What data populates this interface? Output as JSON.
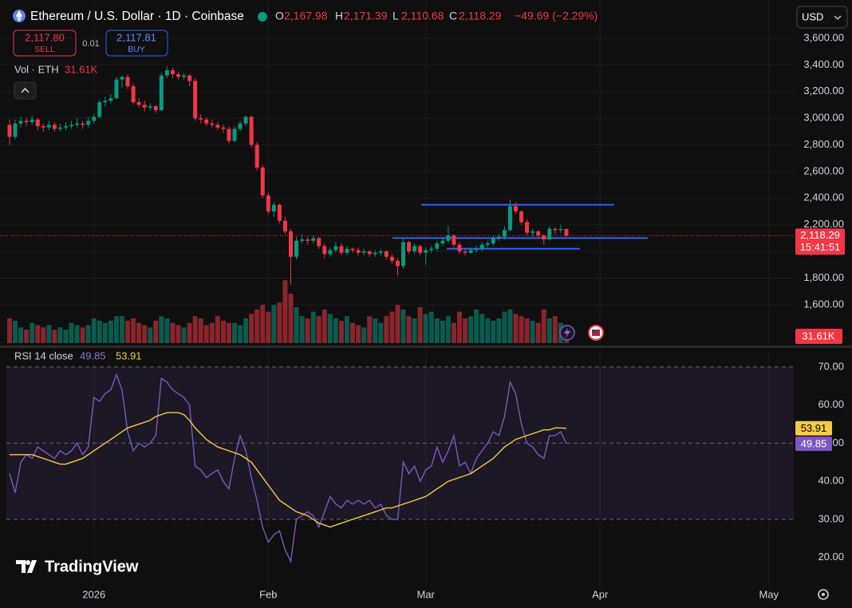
{
  "header": {
    "title": "Ethereum / U.S. Dollar · 1D · Coinbase",
    "ohlc": [
      {
        "key": "O",
        "value": "2,167.98"
      },
      {
        "key": "H",
        "value": "2,171.39"
      },
      {
        "key": "L",
        "value": "2,110.68"
      },
      {
        "key": "C",
        "value": "2,118.29"
      }
    ],
    "change": "−49.69 (−2.29%)"
  },
  "trade": {
    "sell_price": "2,117.80",
    "sell": "SELL",
    "spread": "0.01",
    "buy_price": "2,117.81",
    "buy": "BUY"
  },
  "currency": "USD",
  "logo": "TradingView",
  "timer": "15:41:51",
  "chart_data": {
    "type": "candlestick",
    "up_color": "#089981",
    "down_color": "#f23645",
    "ohlc": [
      [
        2950,
        2990,
        2800,
        2860
      ],
      [
        2860,
        2990,
        2840,
        2960
      ],
      [
        2960,
        3010,
        2930,
        2980
      ],
      [
        2980,
        3000,
        2940,
        2970
      ],
      [
        2970,
        3020,
        2950,
        2990
      ],
      [
        2990,
        3000,
        2910,
        2940
      ],
      [
        2940,
        2960,
        2900,
        2930
      ],
      [
        2930,
        2980,
        2910,
        2950
      ],
      [
        2950,
        2970,
        2900,
        2920
      ],
      [
        2920,
        2960,
        2900,
        2930
      ],
      [
        2930,
        2970,
        2910,
        2940
      ],
      [
        2940,
        2980,
        2920,
        2950
      ],
      [
        2950,
        3000,
        2930,
        2960
      ],
      [
        2960,
        2980,
        2920,
        2950
      ],
      [
        2950,
        3010,
        2930,
        2980
      ],
      [
        2980,
        3030,
        2960,
        3010
      ],
      [
        3010,
        3140,
        3000,
        3120
      ],
      [
        3120,
        3160,
        3090,
        3130
      ],
      [
        3130,
        3180,
        3110,
        3150
      ],
      [
        3150,
        3310,
        3140,
        3290
      ],
      [
        3290,
        3320,
        3230,
        3310
      ],
      [
        3310,
        3330,
        3220,
        3240
      ],
      [
        3240,
        3260,
        3100,
        3120
      ],
      [
        3120,
        3150,
        3080,
        3100
      ],
      [
        3100,
        3130,
        3050,
        3080
      ],
      [
        3080,
        3110,
        3060,
        3090
      ],
      [
        3090,
        3100,
        3040,
        3060
      ],
      [
        3060,
        3340,
        3050,
        3320
      ],
      [
        3320,
        3390,
        3300,
        3360
      ],
      [
        3360,
        3380,
        3300,
        3330
      ],
      [
        3330,
        3350,
        3290,
        3310
      ],
      [
        3310,
        3340,
        3290,
        3320
      ],
      [
        3320,
        3330,
        3240,
        3280
      ],
      [
        3280,
        3300,
        2980,
        3000
      ],
      [
        3000,
        3030,
        2960,
        2990
      ],
      [
        2990,
        3010,
        2940,
        2960
      ],
      [
        2960,
        2990,
        2930,
        2950
      ],
      [
        2950,
        2970,
        2910,
        2930
      ],
      [
        2930,
        2950,
        2890,
        2920
      ],
      [
        2920,
        2940,
        2810,
        2830
      ],
      [
        2830,
        2940,
        2820,
        2920
      ],
      [
        2920,
        2980,
        2900,
        2960
      ],
      [
        2960,
        3020,
        2940,
        3010
      ],
      [
        3010,
        3020,
        2780,
        2800
      ],
      [
        2800,
        2820,
        2610,
        2630
      ],
      [
        2630,
        2650,
        2400,
        2420
      ],
      [
        2420,
        2440,
        2280,
        2300
      ],
      [
        2300,
        2370,
        2260,
        2350
      ],
      [
        2350,
        2360,
        2210,
        2230
      ],
      [
        2230,
        2260,
        2130,
        2150
      ],
      [
        2150,
        2170,
        1750,
        1960
      ],
      [
        1960,
        2110,
        1940,
        2080
      ],
      [
        2080,
        2130,
        2060,
        2090
      ],
      [
        2090,
        2110,
        2050,
        2080
      ],
      [
        2080,
        2120,
        2060,
        2100
      ],
      [
        2100,
        2110,
        2020,
        2040
      ],
      [
        2040,
        2060,
        1950,
        1980
      ],
      [
        1980,
        2030,
        1960,
        2010
      ],
      [
        2010,
        2070,
        1990,
        2040
      ],
      [
        2040,
        2060,
        1970,
        1990
      ],
      [
        1990,
        2040,
        1970,
        2020
      ],
      [
        2020,
        2030,
        1990,
        2010
      ],
      [
        2010,
        2030,
        1970,
        1990
      ],
      [
        1990,
        2020,
        1970,
        2000
      ],
      [
        2000,
        2010,
        1960,
        1980
      ],
      [
        1980,
        2010,
        1960,
        1990
      ],
      [
        1990,
        2020,
        1970,
        2000
      ],
      [
        2000,
        2010,
        1940,
        1960
      ],
      [
        1960,
        1980,
        1910,
        1930
      ],
      [
        1930,
        1950,
        1820,
        1890
      ],
      [
        1890,
        2100,
        1870,
        2070
      ],
      [
        2070,
        2080,
        1980,
        2000
      ],
      [
        2000,
        2060,
        1980,
        2040
      ],
      [
        2040,
        2050,
        1970,
        1990
      ],
      [
        1990,
        2030,
        1900,
        2010
      ],
      [
        2010,
        2040,
        1990,
        2020
      ],
      [
        2020,
        2080,
        2000,
        2060
      ],
      [
        2060,
        2100,
        2040,
        2080
      ],
      [
        2080,
        2190,
        2060,
        2120
      ],
      [
        2120,
        2130,
        2030,
        2050
      ],
      [
        2050,
        2070,
        1980,
        2000
      ],
      [
        2000,
        2020,
        1970,
        1990
      ],
      [
        1990,
        2030,
        1980,
        2010
      ],
      [
        2010,
        2040,
        1990,
        2020
      ],
      [
        2020,
        2070,
        2000,
        2050
      ],
      [
        2050,
        2080,
        2030,
        2060
      ],
      [
        2060,
        2120,
        2040,
        2100
      ],
      [
        2100,
        2130,
        2080,
        2110
      ],
      [
        2110,
        2190,
        2090,
        2160
      ],
      [
        2160,
        2390,
        2150,
        2340
      ],
      [
        2340,
        2370,
        2280,
        2300
      ],
      [
        2300,
        2310,
        2200,
        2220
      ],
      [
        2220,
        2240,
        2120,
        2140
      ],
      [
        2140,
        2170,
        2110,
        2150
      ],
      [
        2150,
        2160,
        2100,
        2120
      ],
      [
        2120,
        2130,
        2050,
        2090
      ],
      [
        2090,
        2190,
        2080,
        2170
      ],
      [
        2170,
        2180,
        2130,
        2160
      ],
      [
        2160,
        2200,
        2140,
        2167.98
      ],
      [
        2167.98,
        2171.39,
        2110.68,
        2118.29
      ]
    ],
    "xlim": [
      -1.7,
      139.43
    ],
    "xticks": [
      {
        "value": 15,
        "label": "2026"
      },
      {
        "value": 46,
        "label": "Feb"
      },
      {
        "value": 74,
        "label": "Mar"
      },
      {
        "value": 105,
        "label": "Apr"
      },
      {
        "value": 135,
        "label": "May"
      }
    ],
    "ylim": [
      1300,
      3887
    ],
    "yticks": [
      {
        "value": 1600,
        "label": "1,600.00"
      },
      {
        "value": 1800,
        "label": "1,800.00"
      },
      {
        "value": 2000,
        "label": "2,000.00"
      },
      {
        "value": 2200,
        "label": "2,200.00"
      },
      {
        "value": 2400,
        "label": "2,400.00"
      },
      {
        "value": 2600,
        "label": "2,600.00"
      },
      {
        "value": 2800,
        "label": "2,800.00"
      },
      {
        "value": 3000,
        "label": "3,000.00"
      },
      {
        "value": 3200,
        "label": "3,200.00"
      },
      {
        "value": 3400,
        "label": "3,400.00"
      },
      {
        "value": 3600,
        "label": "3,600.00"
      }
    ],
    "grid": true,
    "last_price_label": "2,118.29",
    "levels": [
      {
        "value": 2350,
        "color": "#2962ff"
      },
      {
        "value": 2100,
        "color": "#2962ff"
      },
      {
        "value": 2020,
        "color": "#2962ff"
      }
    ],
    "volume": {
      "label": "Vol · ETH",
      "last_label": "31.61K",
      "ylim": [
        0,
        160
      ],
      "values": [
        55,
        50,
        35,
        30,
        45,
        40,
        35,
        40,
        30,
        35,
        30,
        45,
        40,
        35,
        40,
        55,
        50,
        45,
        50,
        60,
        60,
        50,
        55,
        45,
        40,
        35,
        50,
        60,
        55,
        45,
        40,
        35,
        45,
        60,
        55,
        40,
        45,
        60,
        50,
        45,
        45,
        40,
        55,
        65,
        75,
        85,
        70,
        85,
        90,
        140,
        110,
        80,
        60,
        55,
        70,
        60,
        75,
        65,
        55,
        50,
        60,
        45,
        40,
        35,
        60,
        55,
        45,
        60,
        70,
        85,
        75,
        60,
        55,
        80,
        65,
        70,
        55,
        50,
        60,
        45,
        70,
        55,
        60,
        75,
        65,
        55,
        50,
        55,
        70,
        75,
        65,
        60,
        55,
        50,
        45,
        75,
        55,
        60,
        45,
        31.61
      ]
    },
    "rsi": {
      "label": "RSI 14 close",
      "ylim": [
        12.4,
        74.8
      ],
      "yticks": [
        {
          "value": 20,
          "label": "20.00"
        },
        {
          "value": 30,
          "label": "30.00"
        },
        {
          "value": 40,
          "label": "40.00"
        },
        {
          "value": 50,
          "label": "50.00"
        },
        {
          "value": 60,
          "label": "60.00"
        },
        {
          "value": 70,
          "label": "70.00"
        }
      ],
      "levels": [
        70,
        50,
        30
      ],
      "series": [
        {
          "color": "#7e57c2",
          "value_label": "49.85",
          "values": [
            42,
            37,
            45,
            47,
            46,
            49,
            48,
            47,
            46,
            48,
            47,
            48,
            50,
            47,
            49,
            62,
            61,
            63,
            64,
            68,
            64,
            53,
            48,
            50,
            49,
            50,
            52,
            67,
            66,
            64,
            63,
            62,
            60,
            44,
            43,
            41,
            42,
            43,
            40,
            38,
            46,
            52,
            48,
            41,
            35,
            28,
            24,
            26,
            27,
            22,
            19,
            30,
            31,
            32,
            31,
            28,
            32,
            36,
            34,
            33,
            35,
            34,
            35,
            34,
            35,
            33,
            34,
            31,
            30,
            30,
            45,
            42,
            44,
            40,
            43,
            44,
            49,
            45,
            48,
            52,
            44,
            45,
            42,
            46,
            48,
            50,
            53,
            52,
            57,
            66,
            63,
            55,
            50,
            49,
            47,
            46,
            52,
            52,
            53,
            49.85
          ]
        },
        {
          "color": "#f7c948",
          "value_label": "53.91",
          "values": [
            47,
            47,
            47,
            47,
            47,
            46.5,
            46,
            45.5,
            45,
            44.5,
            44.5,
            45,
            45.5,
            46,
            47,
            48,
            49,
            50,
            51,
            52,
            53,
            54,
            54.5,
            55,
            55.5,
            56,
            57,
            57.5,
            58,
            58,
            58,
            57.5,
            56,
            54,
            52.5,
            51,
            50,
            49,
            48.5,
            48,
            47.5,
            47,
            46,
            45,
            43,
            41,
            39,
            37,
            35,
            34,
            33,
            32,
            31.5,
            31,
            30,
            29,
            28.5,
            28,
            28.5,
            29,
            29.5,
            30,
            30.5,
            31,
            31.5,
            32,
            32.5,
            33,
            33,
            33.5,
            34,
            34.5,
            35,
            35.5,
            36,
            37,
            38,
            39,
            40,
            40.5,
            41,
            41.5,
            42,
            43,
            44,
            45,
            46,
            47.5,
            49,
            50,
            51,
            51.5,
            52,
            52.5,
            53,
            53.5,
            53.5,
            54,
            54,
            53.91
          ]
        }
      ]
    }
  }
}
